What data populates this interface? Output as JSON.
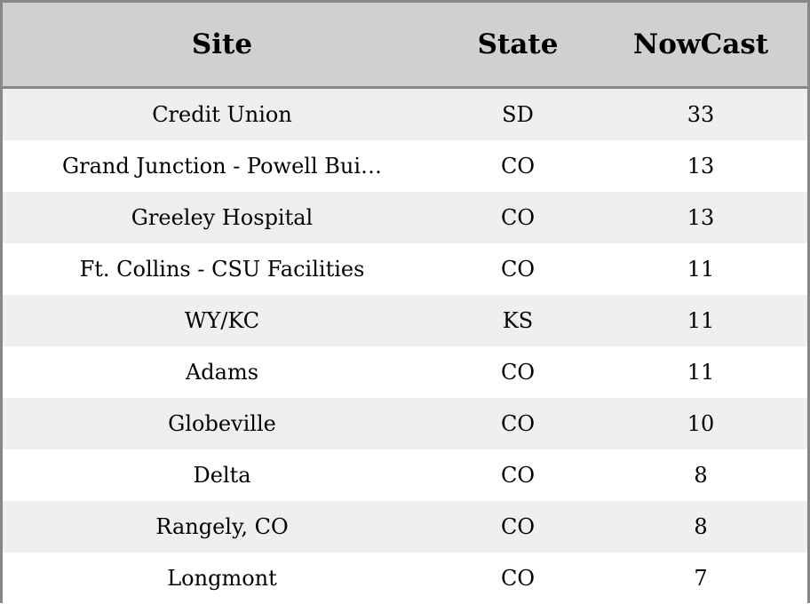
{
  "chart_data": {
    "type": "table",
    "columns": [
      "Site",
      "State",
      "NowCast"
    ],
    "rows": [
      [
        "Credit Union",
        "SD",
        "33"
      ],
      [
        "Grand Junction - Powell Bui…",
        "CO",
        "13"
      ],
      [
        "Greeley Hospital",
        "CO",
        "13"
      ],
      [
        "Ft. Collins - CSU Facilities",
        "CO",
        "11"
      ],
      [
        "WY/KC",
        "KS",
        "11"
      ],
      [
        "Adams",
        "CO",
        "11"
      ],
      [
        "Globeville",
        "CO",
        "10"
      ],
      [
        "Delta",
        "CO",
        "8"
      ],
      [
        "Rangely, CO",
        "CO",
        "8"
      ],
      [
        "Longmont",
        "CO",
        "7"
      ]
    ]
  },
  "colors": {
    "header_background": "#d0d0d0",
    "border": "#888888",
    "row_stripe": "#efefef",
    "row_plain": "#ffffff"
  }
}
